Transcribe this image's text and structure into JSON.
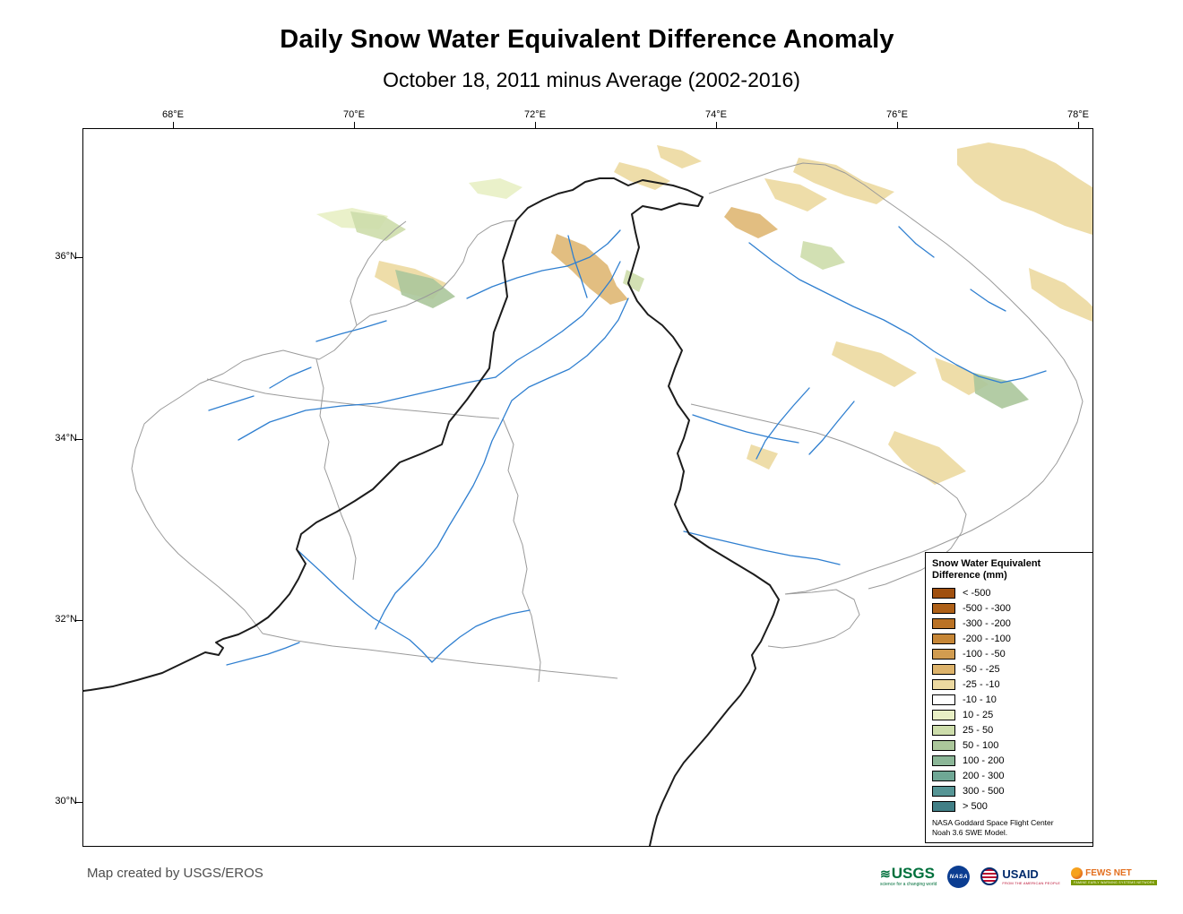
{
  "title": "Daily Snow Water Equivalent Difference Anomaly",
  "subtitle": "October 18, 2011 minus Average (2002-2016)",
  "map": {
    "x_axis_labels": [
      "68°E",
      "70°E",
      "72°E",
      "74°E",
      "76°E",
      "78°E"
    ],
    "y_axis_labels": [
      "36°N",
      "34°N",
      "32°N",
      "30°N"
    ],
    "colors": {
      "river": "#2f7fd0",
      "watershed": "#9a9a9a",
      "border": "#1c1c1c",
      "background": "#ffffff"
    }
  },
  "legend": {
    "title": [
      "Snow Water Equivalent",
      "Difference (mm)"
    ],
    "entries": [
      {
        "label": "< -500",
        "color": "#a0500f"
      },
      {
        "label": "-500 - -300",
        "color": "#ae6017"
      },
      {
        "label": "-300 - -200",
        "color": "#ba7224"
      },
      {
        "label": "-200 - -100",
        "color": "#c68636"
      },
      {
        "label": "-100 - -50",
        "color": "#d19c50"
      },
      {
        "label": "-50 - -25",
        "color": "#ddb36b"
      },
      {
        "label": "-25 - -10",
        "color": "#ecd9a0"
      },
      {
        "label": "-10 - 10",
        "color": "#ffffff"
      },
      {
        "label": "10 - 25",
        "color": "#e8efc4"
      },
      {
        "label": "25 - 50",
        "color": "#cdddab"
      },
      {
        "label": "50 - 100",
        "color": "#abc79b"
      },
      {
        "label": "100 - 200",
        "color": "#8bb697"
      },
      {
        "label": "200 - 300",
        "color": "#6fa795"
      },
      {
        "label": "300 - 500",
        "color": "#569595"
      },
      {
        "label": "> 500",
        "color": "#417f86"
      }
    ],
    "note": [
      "NASA Goddard Space Flight Center",
      "Noah 3.6  SWE Model."
    ]
  },
  "footer": {
    "credit": "Map created by USGS/EROS"
  },
  "logos": {
    "usgs": {
      "text": "USGS",
      "tagline": "science for a changing world",
      "color": "#00703c"
    },
    "nasa": {
      "text": "NASA",
      "color": "#0b3d91"
    },
    "usaid": {
      "text": "USAID",
      "tagline": "FROM THE AMERICAN PEOPLE",
      "color": "#002a6c",
      "accent": "#ba0c2f"
    },
    "fewsnet": {
      "text": "FEWS NET",
      "tagline": "FAMINE EARLY WARNING SYSTEMS NETWORK",
      "color": "#7a9a01",
      "accent": "#e36f1e"
    }
  }
}
